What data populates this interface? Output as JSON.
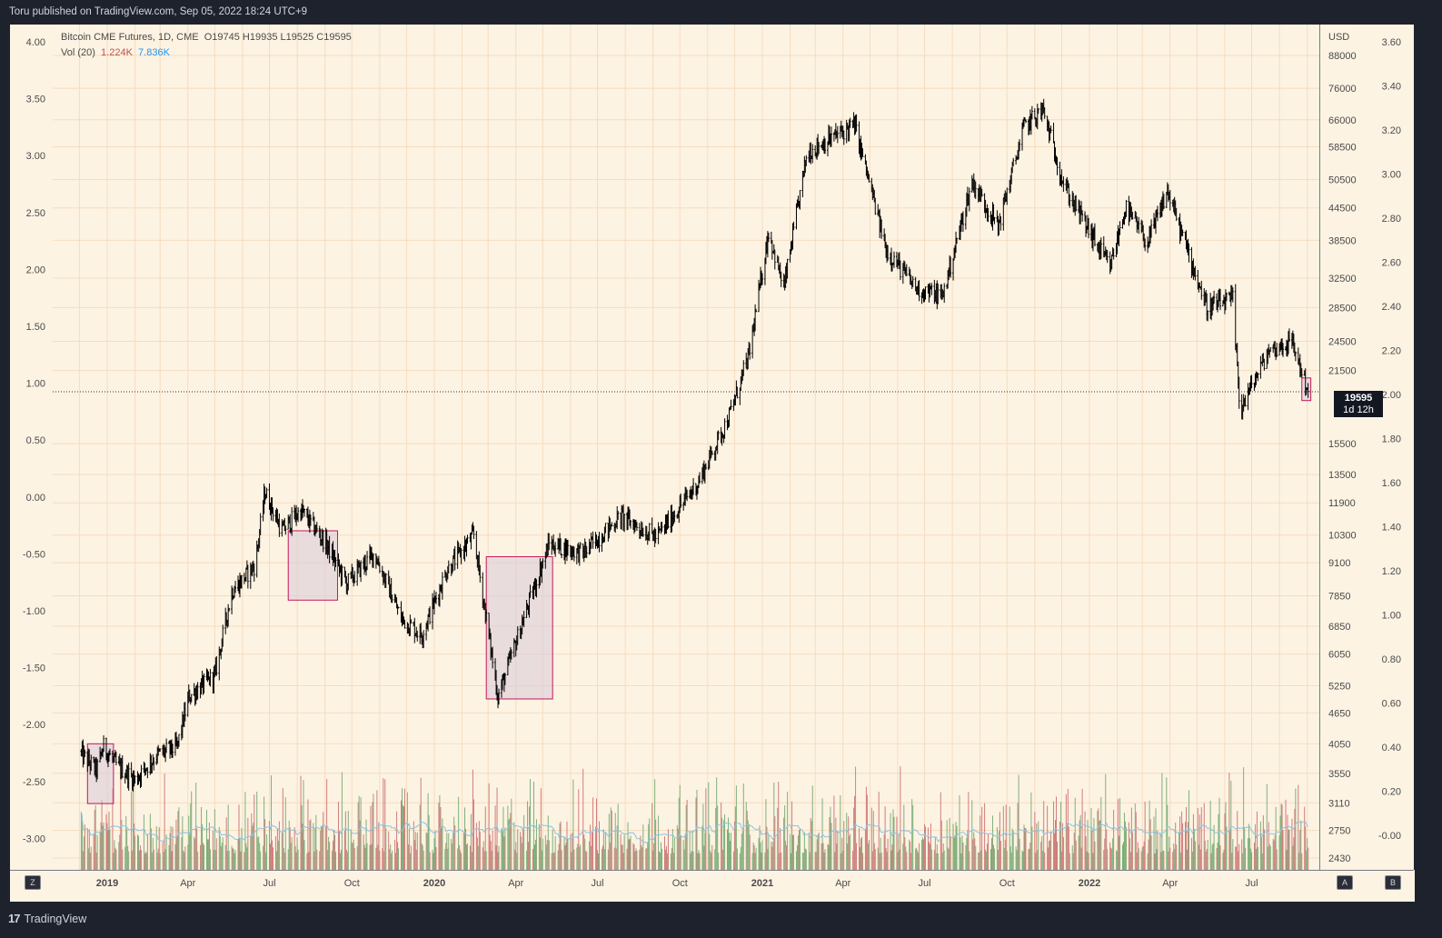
{
  "header": {
    "published": "Toru published on TradingView.com, Sep 05, 2022 18:24 UTC+9"
  },
  "legend": {
    "symbol": "Bitcoin CME Futures, 1D, CME",
    "ohlc": "O19745  H19935  L19525  C19595",
    "vol_label": "Vol (20)",
    "vol_value": "1.224K",
    "vol_ma": "7.836K"
  },
  "price_label": {
    "price": "19595",
    "countdown": "1d 12h"
  },
  "footer": {
    "brand": "TradingView",
    "btn_z": "Z",
    "btn_a": "A",
    "btn_b": "B"
  },
  "colors": {
    "background": "#fdf3e3",
    "grid": "#f5dcbf",
    "candle": "#000000",
    "box_stroke": "#c2185b",
    "box_fill": "#d8c8d8",
    "vol_up": "#7fb07a",
    "vol_down": "#d07c7c",
    "vol_ma": "#8ec3e0"
  },
  "chart_data": {
    "type": "candlestick",
    "title": "Bitcoin CME Futures, 1D, CME",
    "y_unit": "USD",
    "y_scale": "log",
    "x_tick_labels": [
      "2019",
      "Apr",
      "Jul",
      "Oct",
      "2020",
      "Apr",
      "Jul",
      "Oct",
      "2021",
      "Apr",
      "Jul",
      "Oct",
      "2022",
      "Apr",
      "Jul"
    ],
    "price_ticks": [
      88000,
      76000,
      66000,
      58500,
      50500,
      44500,
      38500,
      32500,
      28500,
      24500,
      21500,
      15500,
      13500,
      11900,
      10300,
      9100,
      7850,
      6850,
      6050,
      5250,
      4650,
      4050,
      3550,
      3110,
      2750,
      2430
    ],
    "left_axis_ticks": [
      "4.00",
      "3.50",
      "3.00",
      "2.50",
      "2.00",
      "1.50",
      "1.00",
      "0.50",
      "0.00",
      "-0.50",
      "-1.00",
      "-1.50",
      "-2.00",
      "-2.50",
      "-3.00"
    ],
    "right_axis_ticks": [
      "3.60",
      "3.40",
      "3.20",
      "3.00",
      "2.80",
      "2.60",
      "2.40",
      "2.20",
      "2.00",
      "1.80",
      "1.60",
      "1.40",
      "1.20",
      "1.00",
      "0.80",
      "0.60",
      "0.40",
      "0.20",
      "-0.00"
    ],
    "series": [
      {
        "name": "Bitcoin CME Futures",
        "points": [
          {
            "x": "2018-12",
            "y": 3900
          },
          {
            "x": "2018-12-20",
            "y": 3600
          },
          {
            "x": "2018-12-28",
            "y": 4000
          },
          {
            "x": "2019-01-10",
            "y": 3700
          },
          {
            "x": "2019-02-01",
            "y": 3450
          },
          {
            "x": "2019-02-25",
            "y": 3850
          },
          {
            "x": "2019-03-20",
            "y": 4000
          },
          {
            "x": "2019-04-02",
            "y": 5000
          },
          {
            "x": "2019-05-01",
            "y": 5500
          },
          {
            "x": "2019-05-20",
            "y": 8000
          },
          {
            "x": "2019-06-15",
            "y": 9000
          },
          {
            "x": "2019-06-26",
            "y": 12500
          },
          {
            "x": "2019-07-15",
            "y": 10500
          },
          {
            "x": "2019-08-05",
            "y": 11500
          },
          {
            "x": "2019-09-01",
            "y": 10000
          },
          {
            "x": "2019-09-25",
            "y": 8300
          },
          {
            "x": "2019-10-26",
            "y": 9500
          },
          {
            "x": "2019-11-25",
            "y": 7100
          },
          {
            "x": "2019-12-18",
            "y": 6600
          },
          {
            "x": "2020-01-15",
            "y": 8800
          },
          {
            "x": "2020-02-14",
            "y": 10300
          },
          {
            "x": "2020-03-12",
            "y": 5000
          },
          {
            "x": "2020-04-10",
            "y": 7100
          },
          {
            "x": "2020-05-08",
            "y": 9900
          },
          {
            "x": "2020-06-15",
            "y": 9500
          },
          {
            "x": "2020-07-27",
            "y": 11200
          },
          {
            "x": "2020-09-05",
            "y": 10200
          },
          {
            "x": "2020-10-21",
            "y": 13000
          },
          {
            "x": "2020-11-25",
            "y": 17500
          },
          {
            "x": "2020-12-17",
            "y": 23000
          },
          {
            "x": "2021-01-08",
            "y": 40000
          },
          {
            "x": "2021-01-25",
            "y": 31000
          },
          {
            "x": "2021-02-20",
            "y": 57000
          },
          {
            "x": "2021-03-13",
            "y": 60000
          },
          {
            "x": "2021-04-14",
            "y": 64500
          },
          {
            "x": "2021-05-19",
            "y": 37000
          },
          {
            "x": "2021-06-22",
            "y": 31000
          },
          {
            "x": "2021-07-21",
            "y": 30000
          },
          {
            "x": "2021-08-23",
            "y": 50000
          },
          {
            "x": "2021-09-21",
            "y": 41000
          },
          {
            "x": "2021-10-20",
            "y": 64000
          },
          {
            "x": "2021-11-10",
            "y": 69000
          },
          {
            "x": "2021-12-04",
            "y": 49000
          },
          {
            "x": "2022-01-24",
            "y": 34000
          },
          {
            "x": "2022-02-10",
            "y": 44500
          },
          {
            "x": "2022-03-07",
            "y": 38000
          },
          {
            "x": "2022-03-29",
            "y": 48000
          },
          {
            "x": "2022-05-12",
            "y": 28500
          },
          {
            "x": "2022-06-10",
            "y": 29500
          },
          {
            "x": "2022-06-18",
            "y": 18000
          },
          {
            "x": "2022-07-20",
            "y": 23500
          },
          {
            "x": "2022-08-15",
            "y": 24500
          },
          {
            "x": "2022-09-02",
            "y": 19595
          }
        ]
      }
    ],
    "annotation_boxes": [
      {
        "start": "2018-12-10",
        "end": "2019-01-08",
        "high": 4050,
        "low": 3100
      },
      {
        "start": "2019-07-22",
        "end": "2019-09-15",
        "high": 10500,
        "low": 7700
      },
      {
        "start": "2020-02-28",
        "end": "2020-05-12",
        "high": 9350,
        "low": 4950
      },
      {
        "start": "2022-08-26",
        "end": "2022-09-05",
        "high": 20800,
        "low": 18800
      }
    ],
    "last_price_line": 19595,
    "grid": true
  }
}
